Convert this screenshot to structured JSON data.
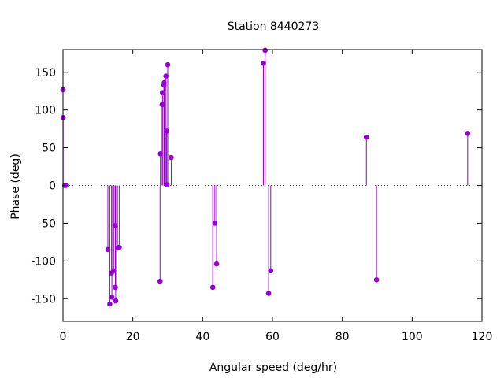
{
  "chart_data": {
    "type": "scatter",
    "style": "impulses-with-points",
    "title": "Station 8440273",
    "xlabel": "Angular speed (deg/hr)",
    "ylabel": "Phase (deg)",
    "xlim": [
      0,
      120
    ],
    "ylim": [
      -180,
      180
    ],
    "xticks": [
      0,
      20,
      40,
      60,
      80,
      100,
      120
    ],
    "yticks": [
      -150,
      -100,
      -50,
      0,
      50,
      100,
      150
    ],
    "grid": false,
    "zero_line": true,
    "colors": {
      "series": "#9400d3",
      "axis": "#000000"
    },
    "series": [
      {
        "x": [
          0.0,
          0.04,
          0.5,
          0.8,
          12.85,
          13.4,
          13.9,
          14.0,
          14.5,
          14.9,
          15.0,
          15.1,
          15.6,
          16.1,
          27.8,
          27.9,
          28.4,
          28.5,
          28.9,
          29.0,
          29.5,
          29.7,
          29.8,
          30.0,
          31.0,
          42.9,
          43.5,
          44.0,
          57.4,
          57.9,
          58.9,
          59.5,
          86.9,
          89.8,
          115.9
        ],
        "y": [
          127,
          90,
          0,
          0,
          -85,
          -157,
          -116,
          -148,
          -113,
          -53,
          -135,
          -153,
          -83,
          -82,
          -127,
          42,
          107,
          123,
          133,
          136,
          145,
          72,
          1,
          160,
          37,
          -135,
          -50,
          -104,
          162,
          179,
          -143,
          -113,
          64,
          -125,
          69
        ]
      }
    ]
  }
}
